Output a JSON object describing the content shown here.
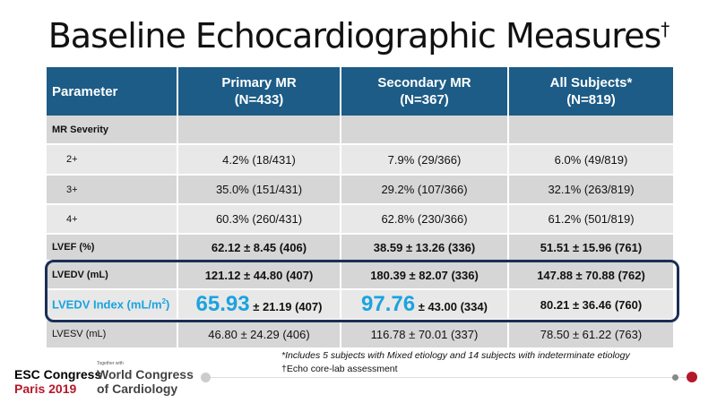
{
  "title": "Baseline Echocardiographic Measures",
  "title_mark": "†",
  "headers": [
    {
      "l1": "Parameter",
      "l2": ""
    },
    {
      "l1": "Primary MR",
      "l2": "(N=433)"
    },
    {
      "l1": "Secondary MR",
      "l2": "(N=367)"
    },
    {
      "l1": "All Subjects*",
      "l2": "(N=819)"
    }
  ],
  "rows": [
    {
      "label": "MR Severity",
      "c": [
        "",
        "",
        ""
      ]
    },
    {
      "label": "2+",
      "c": [
        "4.2% (18/431)",
        "7.9% (29/366)",
        "6.0% (49/819)"
      ]
    },
    {
      "label": "3+",
      "c": [
        "35.0% (151/431)",
        "29.2% (107/366)",
        "32.1% (263/819)"
      ]
    },
    {
      "label": "4+",
      "c": [
        "60.3% (260/431)",
        "62.8% (230/366)",
        "61.2% (501/819)"
      ]
    },
    {
      "label": "LVEF (%)",
      "c": [
        "62.12 ± 8.45 (406)",
        "38.59 ± 13.26 (336)",
        "51.51 ± 15.96 (761)"
      ]
    },
    {
      "label": "LVEDV (mL)",
      "c": [
        "121.12 ± 44.80 (407)",
        "180.39 ± 82.07 (336)",
        "147.88 ± 70.88 (762)"
      ]
    },
    {
      "label": "LVEDV Index (mL/m",
      "label_sup": "2",
      "label_end": ")",
      "c": [
        {
          "big": "65.93",
          "rest": " ± 21.19 (407)"
        },
        {
          "big": "97.76",
          "rest": " ± 43.00 (334)"
        },
        "80.21 ± 36.46 (760)"
      ]
    },
    {
      "label": "LVESV  (mL)",
      "c": [
        "46.80 ± 24.29 (406)",
        "116.78 ± 70.01 (337)",
        "78.50 ± 61.22 (763)"
      ]
    }
  ],
  "footnotes": [
    "*Includes 5 subjects with Mixed etiology and 14 subjects with indeterminate etiology",
    "†Echo core-lab assessment"
  ],
  "logo": {
    "l1": "ESC Congress",
    "l2": "Paris 2019",
    "together": "Together with",
    "w1": "World Congress",
    "w2": "of Cardiology"
  },
  "colors": {
    "header": "#1d5c86",
    "highlight": "#1aa3e0",
    "box": "#1a2f55",
    "brand_red": "#b5182a"
  }
}
